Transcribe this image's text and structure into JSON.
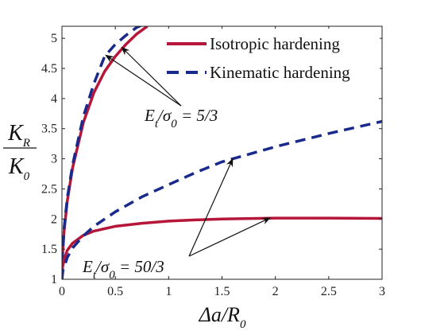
{
  "chart_data": {
    "type": "line",
    "xlabel": {
      "base": "Δa/R",
      "sub": "0"
    },
    "ylabel": {
      "num": "K",
      "num_sub": "R",
      "den": "K",
      "den_sub": "0"
    },
    "xlim": [
      0,
      3
    ],
    "ylim": [
      1,
      5.2
    ],
    "xticks": [
      0,
      0.5,
      1,
      1.5,
      2,
      2.5,
      3
    ],
    "xtick_labels": [
      "0",
      "0.5",
      "1",
      "1.5",
      "2",
      "2.5",
      "3"
    ],
    "yticks": [
      1,
      1.5,
      2,
      2.5,
      3,
      3.5,
      4,
      4.5,
      5
    ],
    "ytick_labels": [
      "1",
      "1.5",
      "2",
      "2.5",
      "3",
      "3.5",
      "4",
      "4.5",
      "5"
    ],
    "grid": false,
    "legend_position": "top-right",
    "series": [
      {
        "name": "Isotropic hardening",
        "color": "#b5163a",
        "style": "solid",
        "group": "Et/σ0 = 5/3",
        "x": [
          0,
          0.005,
          0.02,
          0.05,
          0.1,
          0.2,
          0.3,
          0.4,
          0.5,
          0.6,
          0.7,
          0.8
        ],
        "y": [
          1.0,
          1.4,
          1.8,
          2.3,
          2.85,
          3.6,
          4.1,
          4.45,
          4.7,
          4.9,
          5.07,
          5.2
        ]
      },
      {
        "name": "Kinematic hardening",
        "color": "#1a2a8c",
        "style": "dashed",
        "group": "Et/σ0 = 5/3",
        "x": [
          0,
          0.005,
          0.02,
          0.05,
          0.1,
          0.2,
          0.3,
          0.4,
          0.5,
          0.6,
          0.7,
          0.75
        ],
        "y": [
          1.0,
          1.4,
          1.85,
          2.35,
          2.9,
          3.7,
          4.25,
          4.7,
          4.9,
          5.05,
          5.18,
          5.22
        ]
      },
      {
        "name": "Isotropic hardening",
        "color": "#b5163a",
        "style": "solid",
        "group": "Et/σ0 = 50/3",
        "x": [
          0,
          0.005,
          0.02,
          0.05,
          0.1,
          0.2,
          0.3,
          0.5,
          0.75,
          1.0,
          1.25,
          1.5,
          2.0,
          2.5,
          3.0
        ],
        "y": [
          1.0,
          1.2,
          1.33,
          1.48,
          1.6,
          1.73,
          1.8,
          1.88,
          1.93,
          1.965,
          1.985,
          2.0,
          2.015,
          2.015,
          2.01
        ]
      },
      {
        "name": "Kinematic hardening",
        "color": "#1a2a8c",
        "style": "dashed",
        "group": "Et/σ0 = 50/3",
        "x": [
          0,
          0.01,
          0.05,
          0.1,
          0.2,
          0.3,
          0.5,
          0.75,
          1.0,
          1.25,
          1.5,
          2.0,
          2.5,
          3.0
        ],
        "y": [
          1.0,
          1.15,
          1.36,
          1.52,
          1.72,
          1.88,
          2.12,
          2.37,
          2.57,
          2.77,
          2.95,
          3.2,
          3.42,
          3.62
        ]
      }
    ],
    "legend": [
      {
        "label": "Isotropic hardening",
        "color": "#b5163a",
        "style": "solid"
      },
      {
        "label": "Kinematic hardening",
        "color": "#1a2a8c",
        "style": "dashed"
      }
    ],
    "annotations": [
      {
        "lhs": "E",
        "lhs_sub": "t",
        "mid": "/σ",
        "mid_sub": "0",
        "rhs": " = 5/3",
        "arrows_to": [
          {
            "x": 0.41,
            "y": 4.72
          },
          {
            "x": 0.56,
            "y": 4.85
          }
        ]
      },
      {
        "lhs": "E",
        "lhs_sub": "t",
        "mid": "/σ",
        "mid_sub": "0",
        "rhs": " = 50/3",
        "arrows_to": [
          {
            "x": 1.6,
            "y": 3.0
          },
          {
            "x": 1.95,
            "y": 2.02
          }
        ]
      }
    ]
  }
}
